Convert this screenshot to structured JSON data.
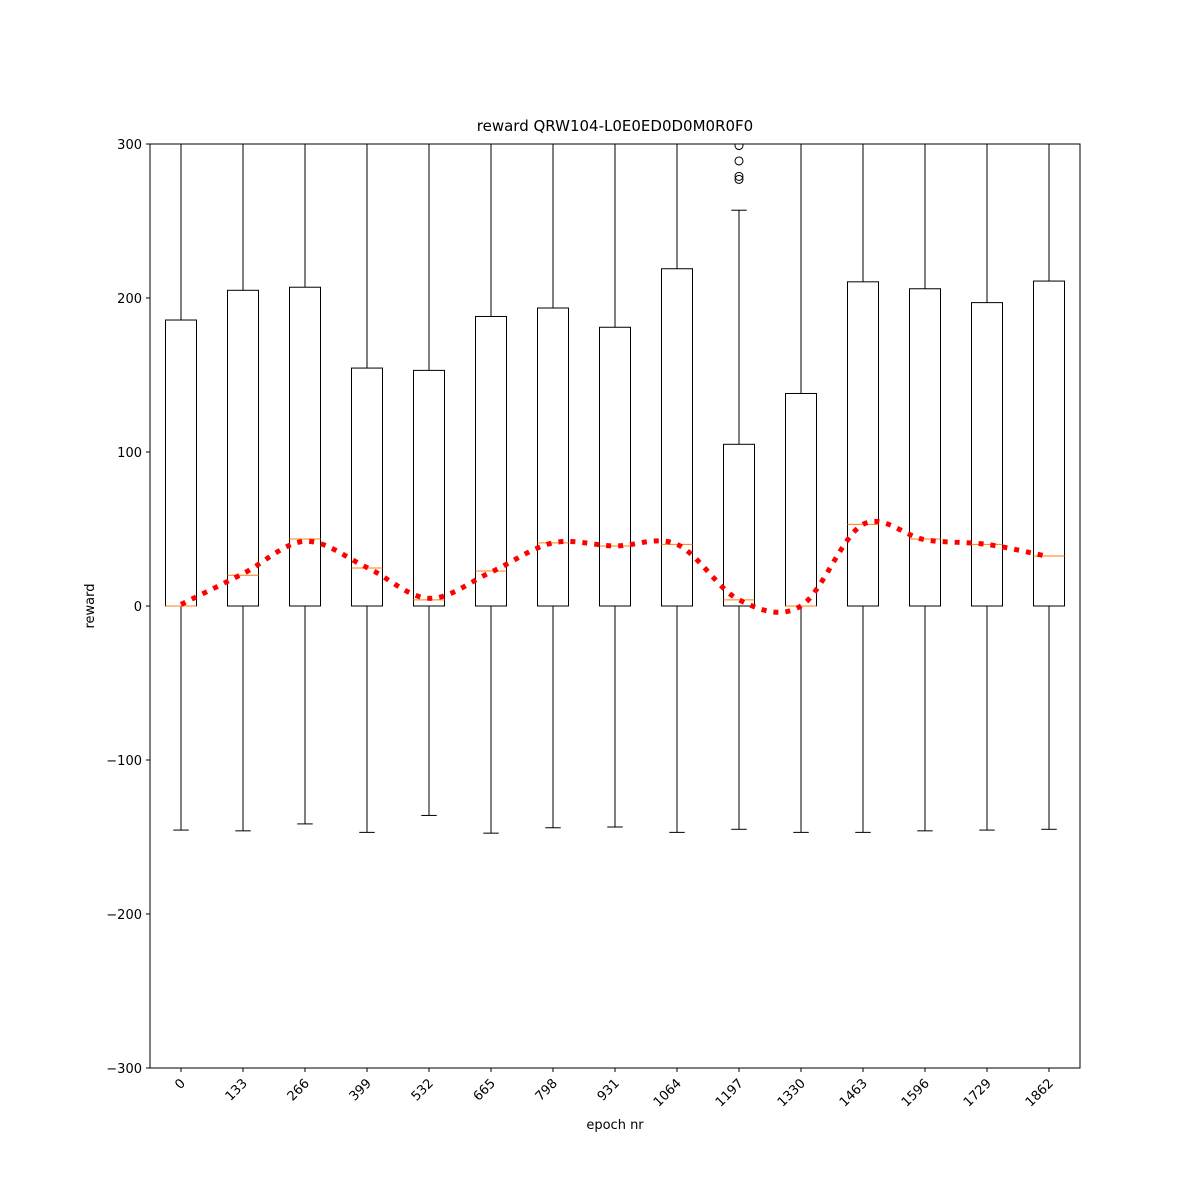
{
  "chart_data": {
    "type": "box",
    "title": "reward QRW104-L0E0ED0D0M0R0F0",
    "x_label": "epoch nr",
    "y_label": "reward",
    "categories": [
      "0",
      "133",
      "266",
      "399",
      "532",
      "665",
      "798",
      "931",
      "1064",
      "1197",
      "1330",
      "1463",
      "1596",
      "1729",
      "1862"
    ],
    "box_color": "#000000",
    "median_color": "#ff7f0e",
    "boxes": [
      {
        "whisker_low": -145.5,
        "q1": 0,
        "median": 0,
        "q3": 185.7,
        "whisker_high": 300,
        "outliers": []
      },
      {
        "whisker_low": -146,
        "q1": 0,
        "median": 20,
        "q3": 205,
        "whisker_high": 300,
        "outliers": []
      },
      {
        "whisker_low": -141.5,
        "q1": 0,
        "median": 43.5,
        "q3": 207,
        "whisker_high": 300,
        "outliers": []
      },
      {
        "whisker_low": -147,
        "q1": 0,
        "median": 24.7,
        "q3": 154.5,
        "whisker_high": 300,
        "outliers": []
      },
      {
        "whisker_low": -136,
        "q1": 0,
        "median": 4,
        "q3": 153,
        "whisker_high": 300,
        "outliers": []
      },
      {
        "whisker_low": -147.5,
        "q1": 0,
        "median": 22.7,
        "q3": 188,
        "whisker_high": 300,
        "outliers": []
      },
      {
        "whisker_low": -144,
        "q1": 0,
        "median": 41,
        "q3": 193.5,
        "whisker_high": 300,
        "outliers": []
      },
      {
        "whisker_low": -143.5,
        "q1": 0,
        "median": 39,
        "q3": 181,
        "whisker_high": 300,
        "outliers": []
      },
      {
        "whisker_low": -147,
        "q1": 0,
        "median": 40,
        "q3": 219,
        "whisker_high": 300,
        "outliers": []
      },
      {
        "whisker_low": -145,
        "q1": 0,
        "median": 4,
        "q3": 105,
        "whisker_high": 257,
        "outliers": [
          277,
          279,
          289,
          299
        ]
      },
      {
        "whisker_low": -147,
        "q1": 0,
        "median": 0,
        "q3": 138,
        "whisker_high": 300,
        "outliers": []
      },
      {
        "whisker_low": -147,
        "q1": 0,
        "median": 53,
        "q3": 210.5,
        "whisker_high": 300,
        "outliers": []
      },
      {
        "whisker_low": -146,
        "q1": 0,
        "median": 43.5,
        "q3": 206,
        "whisker_high": 300,
        "outliers": []
      },
      {
        "whisker_low": -145.5,
        "q1": 0,
        "median": 40,
        "q3": 197,
        "whisker_high": 300,
        "outliers": []
      },
      {
        "whisker_low": -145,
        "q1": 0,
        "median": 32.5,
        "q3": 211,
        "whisker_high": 300,
        "outliers": []
      }
    ],
    "mean": {
      "color": "#ff0000",
      "values": [
        1,
        21,
        42,
        25,
        5,
        22,
        41,
        39,
        40,
        4,
        0,
        53,
        43,
        40,
        32
      ]
    },
    "ylim": [
      -300,
      300
    ],
    "yticks": [
      {
        "value": -300,
        "label": "−300"
      },
      {
        "value": -200,
        "label": "−200"
      },
      {
        "value": -100,
        "label": "−100"
      },
      0,
      100,
      200,
      300
    ],
    "grid": false
  }
}
